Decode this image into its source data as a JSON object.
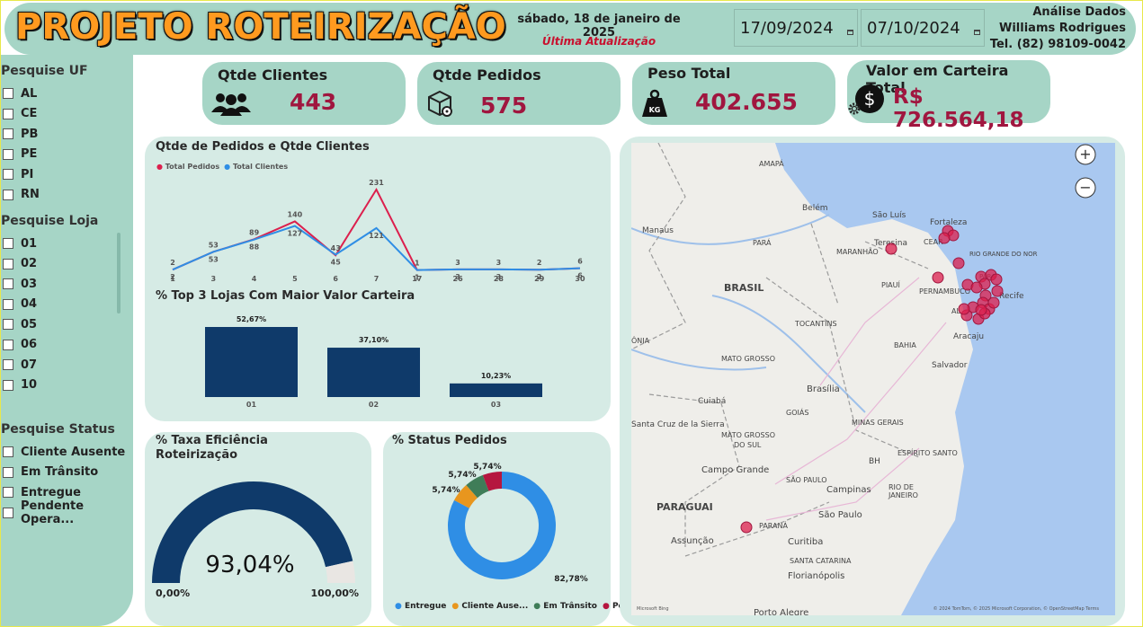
{
  "header": {
    "title": "PROJETO ROTEIRIZAÇÃO",
    "date_text": "sábado, 18 de janeiro de 2025",
    "last_update_label": "Última Atualização",
    "date_start": "17/09/2024",
    "date_end": "07/10/2024",
    "author_line1": "Análise Dados",
    "author_line2": "Williams Rodrigues",
    "author_line3": "Tel. (82) 98109-0042"
  },
  "sidebar": {
    "uf_title": "Pesquise UF",
    "uf_items": [
      "AL",
      "CE",
      "PB",
      "PE",
      "PI",
      "RN"
    ],
    "loja_title": "Pesquise Loja",
    "loja_items": [
      "01",
      "02",
      "03",
      "04",
      "05",
      "06",
      "07",
      "10"
    ],
    "status_title": "Pesquise Status",
    "status_items": [
      "Cliente Ausente",
      "Em Trânsito",
      "Entregue",
      "Pendente Opera..."
    ]
  },
  "kpis": {
    "clientes_title": "Qtde Clientes",
    "clientes_value": "443",
    "pedidos_title": "Qtde Pedidos",
    "pedidos_value": "575",
    "peso_title": "Peso Total",
    "peso_value": "402.655",
    "peso_icon_text": "KG",
    "carteira_title": "Valor em Carteira Total",
    "carteira_value": "R$ 726.564,18"
  },
  "icons": {
    "clientes": "users-icon",
    "pedidos": "package-location-icon",
    "peso": "weight-icon",
    "carteira": "dollar-coin-icon",
    "settings": "gear-icon",
    "zoom_in": "zoom-in-icon",
    "zoom_out": "zoom-out-icon"
  },
  "colors": {
    "accent_red": "#a0163f",
    "pedidos_line": "#dc1f4d",
    "clientes_line": "#2f8ee5",
    "bar": "#0f3a6a",
    "kpi_bg": "#a6d5c6",
    "panel_bg": "#d6ebe5",
    "title_orange": "#ff9a1f"
  },
  "chart_data": [
    {
      "type": "line",
      "title": "Qtde de Pedidos e Qtde Clientes",
      "categories": [
        "1",
        "3",
        "4",
        "5",
        "6",
        "7",
        "17",
        "26",
        "28",
        "29",
        "30"
      ],
      "series": [
        {
          "name": "Total Pedidos",
          "color": "#dc1f4d",
          "values": [
            2,
            53,
            89,
            140,
            43,
            231,
            1,
            3,
            3,
            2,
            6
          ]
        },
        {
          "name": "Total Clientes",
          "color": "#2f8ee5",
          "values": [
            2,
            53,
            88,
            127,
            45,
            121,
            1,
            3,
            3,
            2,
            6
          ]
        }
      ],
      "legend": "top-left"
    },
    {
      "type": "bar",
      "title": "% Top 3 Lojas Com Maior Valor Carteira",
      "categories": [
        "01",
        "02",
        "03"
      ],
      "values": [
        52.67,
        37.1,
        10.23
      ],
      "labels": [
        "52,67%",
        "37,10%",
        "10,23%"
      ],
      "ylim": [
        0,
        52.67
      ]
    },
    {
      "type": "gauge",
      "title": "% Taxa Eficiência Roteirização",
      "value": 93.04,
      "value_label": "93,04%",
      "min_label": "0,00%",
      "max_label": "100,00%"
    },
    {
      "type": "pie",
      "title": "% Status Pedidos",
      "categories": [
        "Entregue",
        "Cliente Ause...",
        "Em Trânsito",
        "Pendente ..."
      ],
      "values": [
        82.78,
        5.74,
        5.74,
        5.74
      ],
      "labels": [
        "82,78%",
        "5,74%",
        "5,74%",
        "5,74%"
      ],
      "colors": [
        "#2f8ee5",
        "#e8961e",
        "#3f7d58",
        "#b5163f"
      ],
      "legend": "bottom"
    }
  ],
  "map": {
    "labels": {
      "amapa": "AMAPÁ",
      "belem": "Belém",
      "sao_luis": "São Luís",
      "fortaleza": "Fortaleza",
      "manaus": "Manaus",
      "para": "PARÁ",
      "teresina": "Teresina",
      "maranhao": "MARANHÃO",
      "ceara": "CEAR",
      "rgn": "RIO GRANDE DO NOR",
      "paraiba": "PARA",
      "brasil": "BRASIL",
      "piaui": "PIAUÍ",
      "pernambuco": "PERNAMBUCO",
      "recife": "Recife",
      "alagoas": "AL",
      "tocantins": "TOCANTINS",
      "ronia": "ÔNIA",
      "aracaju": "Aracaju",
      "bahia": "BAHIA",
      "mato_grosso": "MATO GROSSO",
      "salvador": "Salvador",
      "brasilia": "Brasília",
      "cuiaba": "Cuiabá",
      "goias": "GOIÁS",
      "minas": "MINAS GERAIS",
      "santa_cruz": "Santa Cruz de la Sierra",
      "mgs1": "MATO GROSSO",
      "mgs2": "DO SUL",
      "bh": "BH",
      "espirito": "ESPÍRITO SANTO",
      "campo_grande": "Campo Grande",
      "sao_paulo_state": "SÃO PAULO",
      "rio_state1": "RIO DE",
      "rio_state2": "JANEIRO",
      "campinas": "Campinas",
      "paraguai": "PARAGUAI",
      "sao_paulo": "São Paulo",
      "parana": "PARANÁ",
      "assuncao": "Assunção",
      "curitiba": "Curitiba",
      "santa_catarina": "SANTA CATARINA",
      "florianopolis": "Florianópolis",
      "porto_alegre": "Porto Alegre"
    },
    "attribution": "© 2024 TomTom, © 2025 Microsoft Corporation, © OpenStreetMap  Terms",
    "logo": "Microsoft Bing",
    "zoom_in_label": "+",
    "zoom_out_label": "−"
  }
}
